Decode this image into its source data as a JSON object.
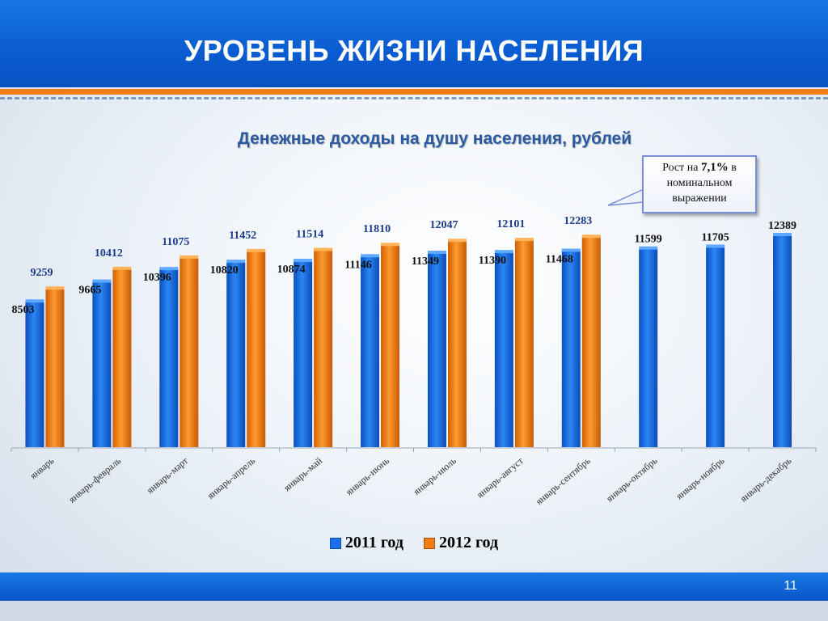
{
  "header": {
    "title": "УРОВЕНЬ ЖИЗНИ НАСЕЛЕНИЯ"
  },
  "callout": {
    "prefix": "Рост на ",
    "value": "7,1%",
    "suffix": " в номинальном выражении"
  },
  "footer": {
    "page_number": "11"
  },
  "colors": {
    "series_2011": "#1a6fe8",
    "series_2012": "#f07d16",
    "header": "#0a5bd1"
  },
  "chart_data": {
    "type": "bar",
    "title": "Денежные доходы на душу населения, рублей",
    "categories": [
      "январь",
      "январь-февраль",
      "январь-март",
      "январь-апрель",
      "январь-май",
      "январь-июнь",
      "январь-июль",
      "январь-август",
      "январь-сентябрь",
      "январь-октябрь",
      "январь-ноябрь",
      "январь-декабрь"
    ],
    "series": [
      {
        "name": "2011 год",
        "values": [
          8503,
          9665,
          10396,
          10820,
          10874,
          11146,
          11349,
          11390,
          11468,
          11599,
          11705,
          12389
        ]
      },
      {
        "name": "2012 год",
        "values": [
          9259,
          10412,
          11075,
          11452,
          11514,
          11810,
          12047,
          12101,
          12283,
          null,
          null,
          null
        ]
      }
    ],
    "ylim": [
      0,
      12389
    ],
    "grid": false,
    "legend": "bottom-center"
  }
}
